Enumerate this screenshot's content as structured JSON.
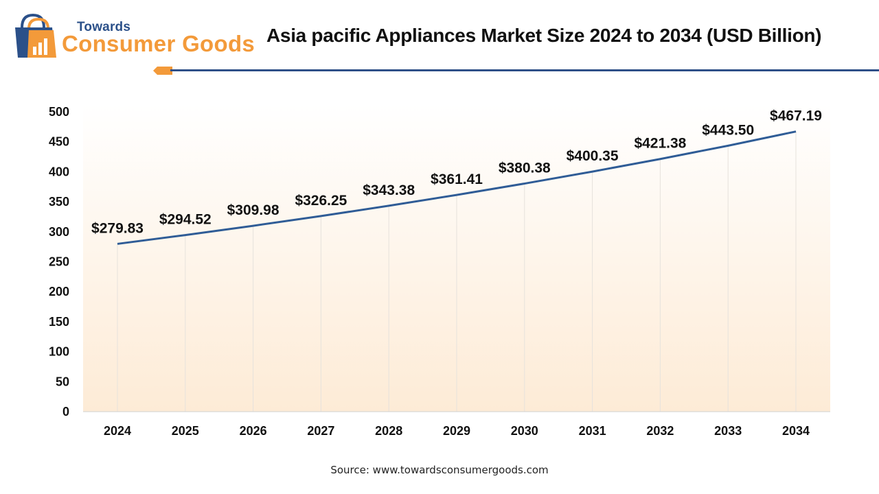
{
  "brand": {
    "small": "Towards",
    "big": "Consumer Goods",
    "colors": {
      "navy": "#2b5089",
      "orange": "#f39a3a"
    }
  },
  "title": "Asia pacific Appliances Market Size 2024 to 2034 (USD Billion)",
  "source": "Source: www.towardsconsumergoods.com",
  "chart_data": {
    "type": "line",
    "title": "Asia pacific Appliances Market Size 2024 to 2034 (USD Billion)",
    "categories": [
      "2024",
      "2025",
      "2026",
      "2027",
      "2028",
      "2029",
      "2030",
      "2031",
      "2032",
      "2033",
      "2034"
    ],
    "series": [
      {
        "values": [
          279.83,
          294.52,
          309.98,
          326.25,
          343.38,
          361.41,
          380.38,
          400.35,
          421.38,
          443.5,
          467.19
        ],
        "labels": [
          "$279.83",
          "$294.52",
          "$309.98",
          "$326.25",
          "$343.38",
          "$361.41",
          "$380.38",
          "$400.35",
          "$421.38",
          "$443.50",
          "$467.19"
        ],
        "color": "#2f5c96"
      }
    ],
    "ylim": [
      0,
      500
    ],
    "yticks": [
      "0",
      "50",
      "100",
      "150",
      "200",
      "250",
      "300",
      "350",
      "400",
      "450",
      "500"
    ],
    "grid": "vertical",
    "legend": "none",
    "background_gradient": [
      "#ffffff",
      "#fdebd6"
    ]
  }
}
